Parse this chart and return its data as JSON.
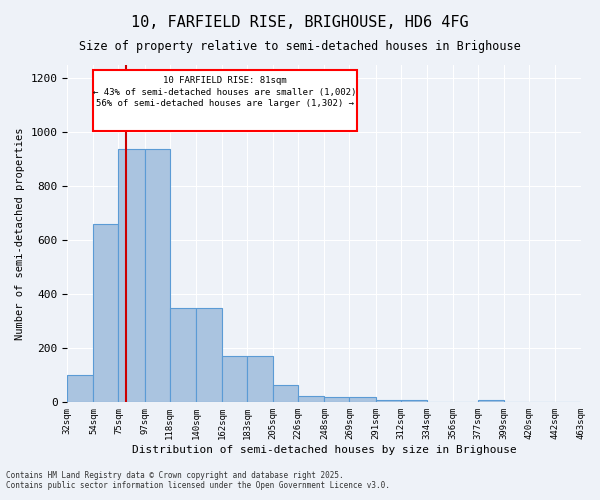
{
  "title1": "10, FARFIELD RISE, BRIGHOUSE, HD6 4FG",
  "title2": "Size of property relative to semi-detached houses in Brighouse",
  "xlabel": "Distribution of semi-detached houses by size in Brighouse",
  "ylabel": "Number of semi-detached properties",
  "footnote1": "Contains HM Land Registry data © Crown copyright and database right 2025.",
  "footnote2": "Contains public sector information licensed under the Open Government Licence v3.0.",
  "property_size": 81,
  "annotation_title": "10 FARFIELD RISE: 81sqm",
  "annotation_line2": "← 43% of semi-detached houses are smaller (1,002)",
  "annotation_line3": "56% of semi-detached houses are larger (1,302) →",
  "bar_edges": [
    32,
    54,
    75,
    97,
    118,
    140,
    162,
    183,
    205,
    226,
    248,
    269,
    291,
    312,
    334,
    356,
    377,
    399,
    420,
    442,
    463
  ],
  "bar_heights": [
    100,
    660,
    940,
    940,
    350,
    350,
    170,
    170,
    65,
    25,
    20,
    20,
    10,
    10,
    0,
    0,
    10,
    0,
    0,
    0
  ],
  "bar_color": "#aac4e0",
  "bar_edge_color": "#5b9bd5",
  "red_line_color": "#cc0000",
  "background_color": "#eef2f8",
  "grid_color": "#ffffff",
  "ylim": [
    0,
    1250
  ],
  "yticks": [
    0,
    200,
    400,
    600,
    800,
    1000,
    1200
  ]
}
